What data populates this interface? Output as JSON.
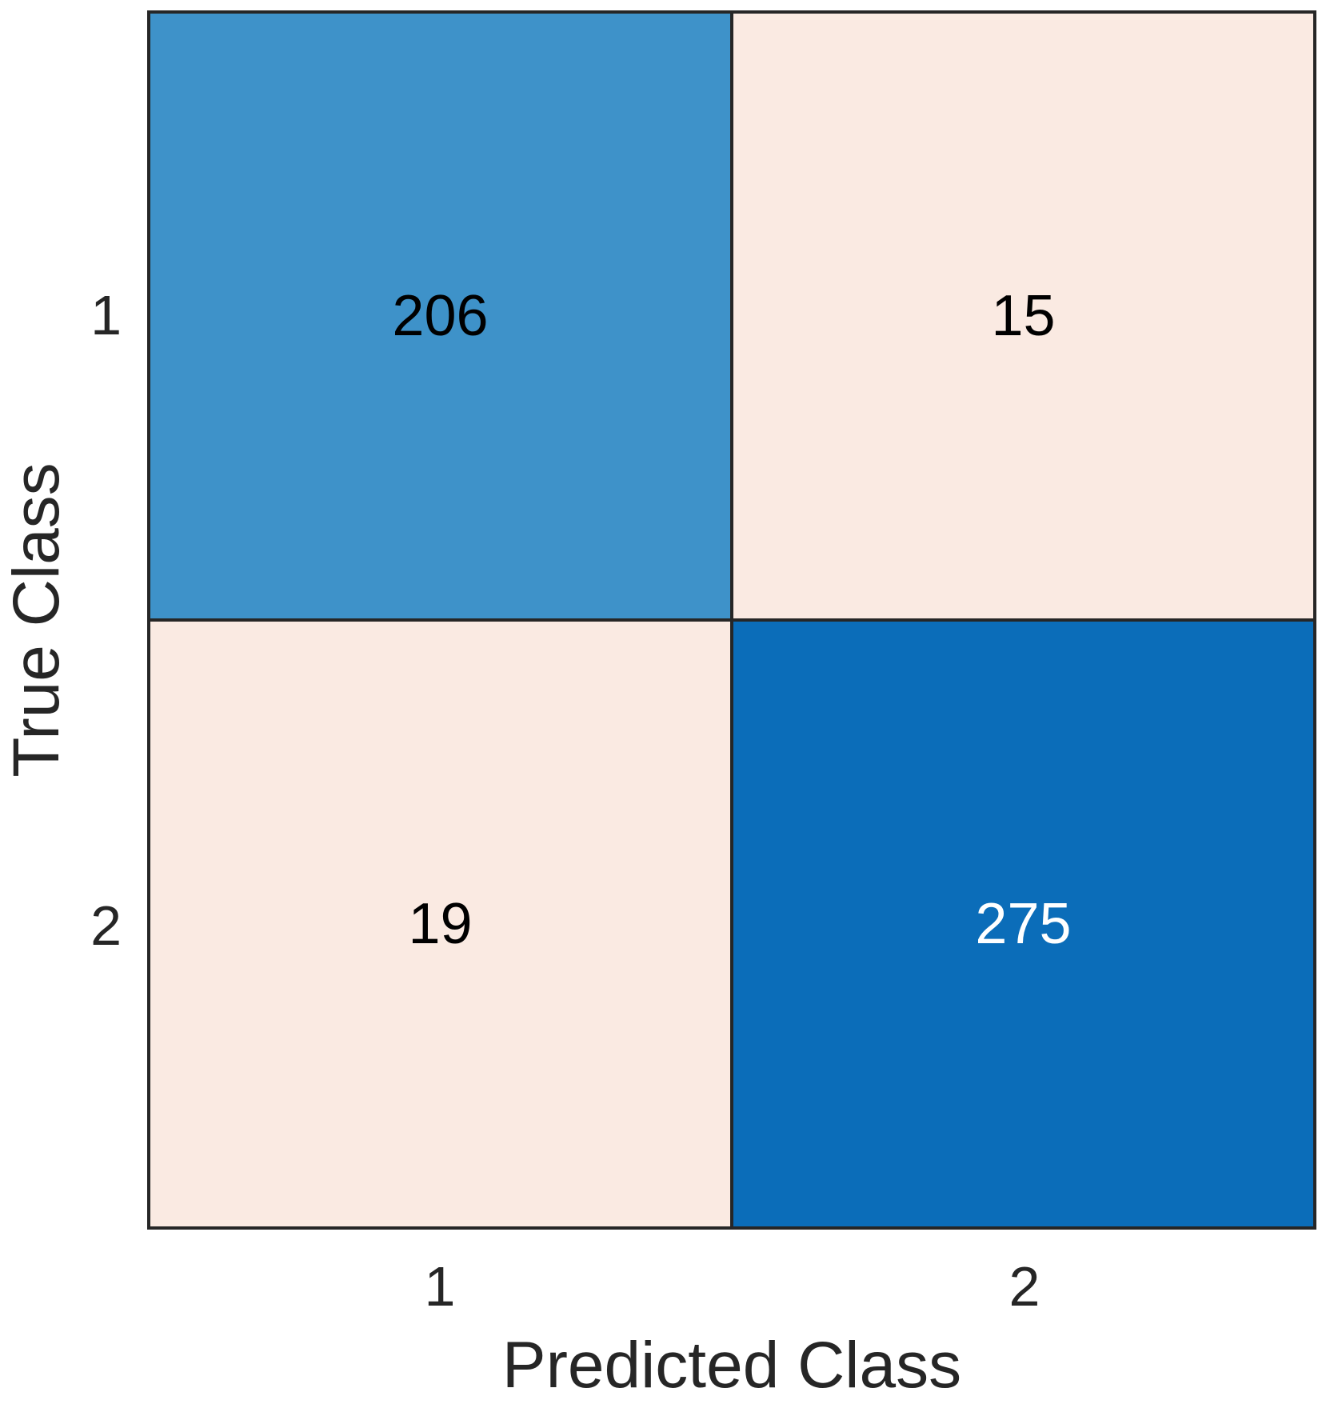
{
  "chart_data": {
    "type": "heatmap",
    "subtype": "confusion-matrix",
    "title": "",
    "xlabel": "Predicted Class",
    "ylabel": "True Class",
    "col_labels": [
      "1",
      "2"
    ],
    "row_labels": [
      "1",
      "2"
    ],
    "matrix": [
      [
        206,
        15
      ],
      [
        19,
        275
      ]
    ],
    "cells": [
      {
        "true": "1",
        "pred": "1",
        "value": 206
      },
      {
        "true": "1",
        "pred": "2",
        "value": 15
      },
      {
        "true": "2",
        "pred": "1",
        "value": 19
      },
      {
        "true": "2",
        "pred": "2",
        "value": 275
      }
    ],
    "cell_colors": [
      [
        "#3E92C9",
        "#FAEAE2"
      ],
      [
        "#FAEAE2",
        "#0B6DB9"
      ]
    ],
    "cell_text_colors": [
      [
        "#000000",
        "#000000"
      ],
      [
        "#000000",
        "#FFFFFF"
      ]
    ],
    "axis_color": "#262626",
    "grid_line_color": "#262626",
    "background": "#FFFFFF",
    "legend": "none",
    "layout": {
      "rows": 2,
      "cols": 2,
      "diagonal_color_base": "#0B6DB9",
      "off_diagonal_color_base": "#FAEAE2"
    }
  }
}
